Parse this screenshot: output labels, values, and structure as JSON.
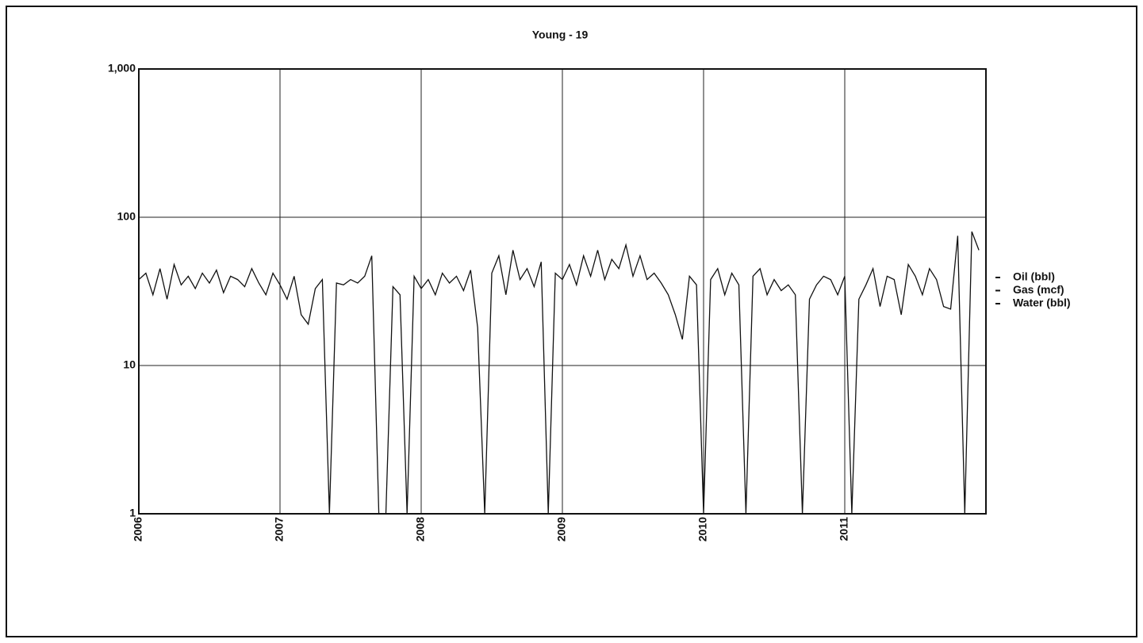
{
  "chart_data": {
    "type": "line",
    "title": "Young - 19",
    "x": [
      2006.0,
      2006.05,
      2006.1,
      2006.15,
      2006.2,
      2006.25,
      2006.3,
      2006.35,
      2006.4,
      2006.45,
      2006.5,
      2006.55,
      2006.6,
      2006.65,
      2006.7,
      2006.75,
      2006.8,
      2006.85,
      2006.9,
      2006.95,
      2007.0,
      2007.05,
      2007.1,
      2007.15,
      2007.2,
      2007.25,
      2007.3,
      2007.35,
      2007.4,
      2007.45,
      2007.5,
      2007.55,
      2007.6,
      2007.65,
      2007.7,
      2007.75,
      2007.8,
      2007.85,
      2007.9,
      2007.95,
      2008.0,
      2008.05,
      2008.1,
      2008.15,
      2008.2,
      2008.25,
      2008.3,
      2008.35,
      2008.4,
      2008.45,
      2008.5,
      2008.55,
      2008.6,
      2008.65,
      2008.7,
      2008.75,
      2008.8,
      2008.85,
      2008.9,
      2008.95,
      2009.0,
      2009.05,
      2009.1,
      2009.15,
      2009.2,
      2009.25,
      2009.3,
      2009.35,
      2009.4,
      2009.45,
      2009.5,
      2009.55,
      2009.6,
      2009.65,
      2009.7,
      2009.75,
      2009.8,
      2009.85,
      2009.9,
      2009.95,
      2010.0,
      2010.05,
      2010.1,
      2010.15,
      2010.2,
      2010.25,
      2010.3,
      2010.35,
      2010.4,
      2010.45,
      2010.5,
      2010.55,
      2010.6,
      2010.65,
      2010.7,
      2010.75,
      2010.8,
      2010.85,
      2010.9,
      2010.95,
      2011.0,
      2011.05,
      2011.1,
      2011.15,
      2011.2,
      2011.25,
      2011.3,
      2011.35,
      2011.4,
      2011.45,
      2011.5,
      2011.55,
      2011.6,
      2011.65,
      2011.7,
      2011.75,
      2011.8,
      2011.85,
      2011.9,
      2011.95
    ],
    "series": [
      {
        "name": "Oil (bbl)",
        "color": "#111111",
        "values": [
          38,
          42,
          30,
          45,
          28,
          48,
          35,
          40,
          33,
          42,
          36,
          44,
          31,
          40,
          38,
          34,
          45,
          36,
          30,
          42,
          35,
          28,
          40,
          22,
          19,
          33,
          38,
          1,
          36,
          35,
          38,
          36,
          40,
          55,
          1,
          1,
          34,
          30,
          1,
          40,
          33,
          38,
          30,
          42,
          36,
          40,
          32,
          44,
          18,
          1,
          42,
          55,
          30,
          60,
          38,
          45,
          34,
          50,
          1,
          42,
          38,
          48,
          35,
          55,
          40,
          60,
          38,
          52,
          45,
          65,
          40,
          55,
          38,
          42,
          36,
          30,
          22,
          15,
          40,
          35,
          1,
          38,
          45,
          30,
          42,
          35,
          1,
          40,
          45,
          30,
          38,
          32,
          35,
          30,
          1,
          28,
          35,
          40,
          38,
          30,
          40,
          1,
          28,
          35,
          45,
          25,
          40,
          38,
          22,
          48,
          40,
          30,
          45,
          38,
          25,
          24,
          75,
          1,
          80,
          60
        ]
      },
      {
        "name": "Gas (mcf)",
        "color": "#111111",
        "values": [
          null,
          null,
          null,
          null,
          null,
          null,
          null,
          null,
          null,
          null,
          null,
          null,
          null,
          null,
          null,
          null,
          null,
          null,
          null,
          null,
          null,
          null,
          null,
          null,
          null,
          null,
          null,
          null,
          null,
          null,
          null,
          null,
          null,
          null,
          null,
          null,
          null,
          null,
          null,
          null,
          null,
          null,
          null,
          null,
          null,
          null,
          null,
          null,
          null,
          null,
          null,
          null,
          null,
          null,
          null,
          null,
          null,
          null,
          null,
          null,
          null,
          null,
          null,
          null,
          null,
          null,
          null,
          null,
          null,
          null,
          null,
          null,
          null,
          null,
          null,
          null,
          null,
          null,
          null,
          null,
          null,
          null,
          null,
          null,
          null,
          null,
          null,
          null,
          null,
          null,
          null,
          null,
          null,
          null,
          null,
          null,
          null,
          null,
          null,
          null,
          null,
          null,
          null,
          null,
          null,
          null,
          null,
          null,
          null,
          null,
          null,
          null,
          null,
          null,
          null,
          null,
          null,
          null,
          null,
          null
        ]
      },
      {
        "name": "Water (bbl)",
        "color": "#111111",
        "values": [
          null,
          null,
          null,
          null,
          null,
          null,
          null,
          null,
          null,
          null,
          null,
          null,
          null,
          null,
          null,
          null,
          null,
          null,
          null,
          null,
          null,
          null,
          null,
          null,
          null,
          null,
          null,
          null,
          null,
          null,
          null,
          null,
          null,
          null,
          null,
          null,
          null,
          null,
          null,
          null,
          null,
          null,
          null,
          null,
          null,
          null,
          null,
          null,
          null,
          null,
          null,
          null,
          null,
          null,
          null,
          null,
          null,
          null,
          null,
          null,
          null,
          null,
          null,
          null,
          null,
          null,
          null,
          null,
          null,
          null,
          null,
          null,
          null,
          null,
          null,
          null,
          null,
          null,
          null,
          null,
          null,
          null,
          null,
          null,
          null,
          null,
          null,
          null,
          null,
          null,
          null,
          null,
          null,
          null,
          null,
          null,
          null,
          null,
          null,
          null,
          null,
          null,
          null,
          null,
          null,
          null,
          null,
          null,
          null,
          null,
          null,
          null,
          null,
          null,
          null,
          null,
          null,
          null,
          null,
          null
        ]
      }
    ],
    "xlim": [
      2006,
      2012
    ],
    "xticks": [
      2006,
      2007,
      2008,
      2009,
      2010,
      2011
    ],
    "ylim": [
      1,
      1000
    ],
    "yticks": [
      1,
      10,
      100,
      {
        "value": 1000,
        "label": "1,000"
      }
    ],
    "log_y": true,
    "grid": true,
    "legend": "right"
  }
}
